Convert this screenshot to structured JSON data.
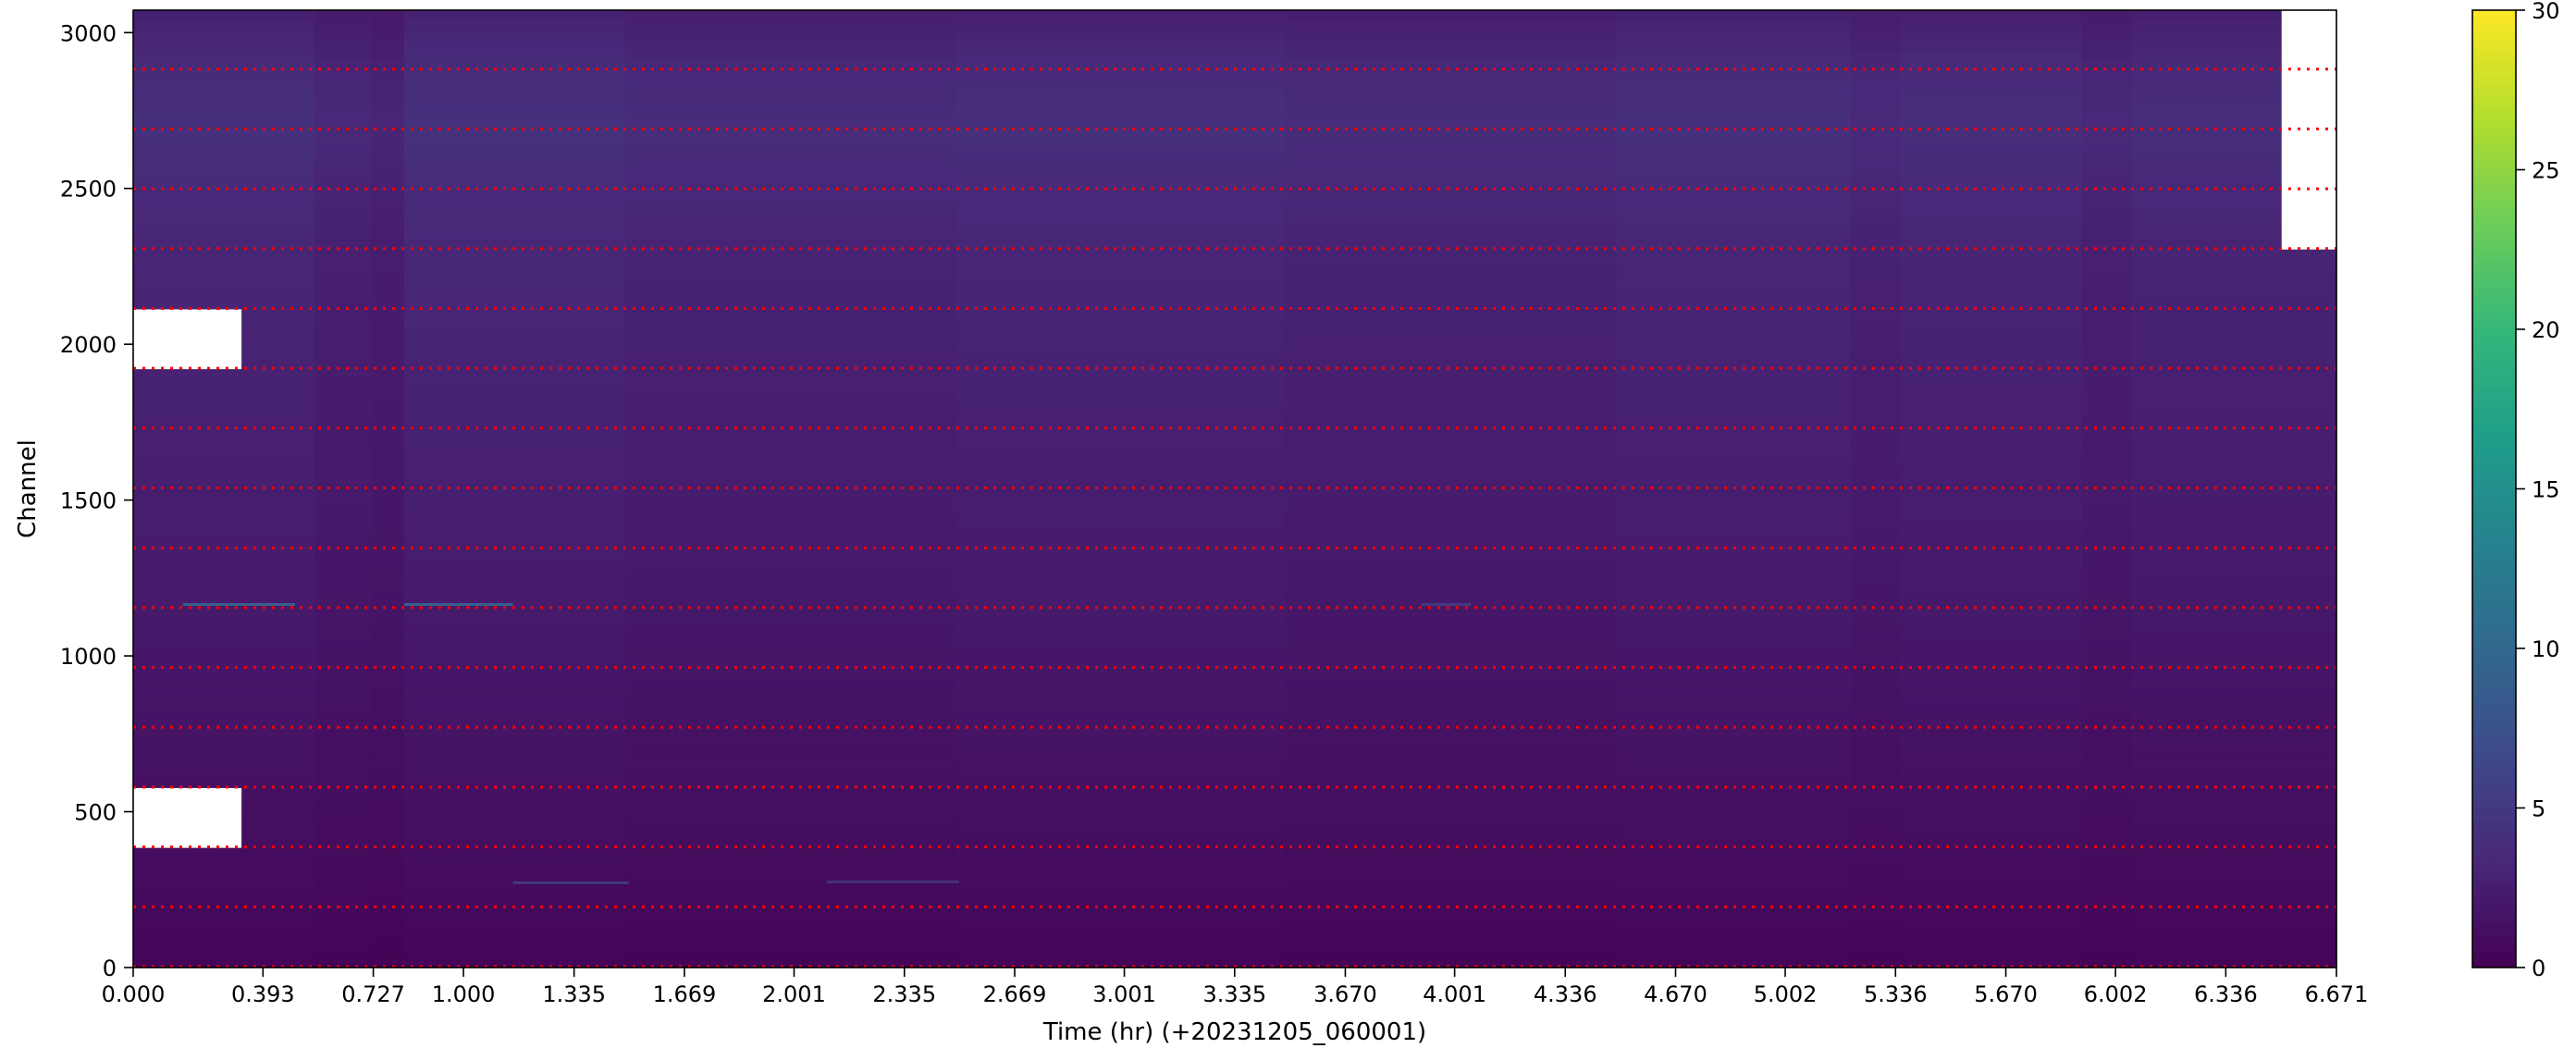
{
  "chart_data": {
    "type": "heatmap",
    "title": "",
    "xlabel": "Time (hr) (+20231205_060001)",
    "ylabel": "Channel",
    "xlim": [
      0,
      6.671
    ],
    "ylim": [
      0,
      3072
    ],
    "x_ticks": [
      "0.000",
      "0.393",
      "0.727",
      "1.000",
      "1.335",
      "1.669",
      "2.001",
      "2.335",
      "2.669",
      "3.001",
      "3.335",
      "3.670",
      "4.001",
      "4.336",
      "4.670",
      "5.002",
      "5.336",
      "5.670",
      "6.002",
      "6.336",
      "6.671"
    ],
    "x_tick_values": [
      0.0,
      0.393,
      0.727,
      1.0,
      1.335,
      1.669,
      2.001,
      2.335,
      2.669,
      3.001,
      3.335,
      3.67,
      4.001,
      4.336,
      4.67,
      5.002,
      5.336,
      5.67,
      6.002,
      6.336,
      6.671
    ],
    "y_ticks": [
      "0",
      "500",
      "1000",
      "1500",
      "2000",
      "2500",
      "3000"
    ],
    "y_tick_values": [
      0,
      500,
      1000,
      1500,
      2000,
      2500,
      3000
    ],
    "colorbar": {
      "colormap": "viridis",
      "range": [
        0,
        30
      ],
      "ticks": [
        "0",
        "5",
        "10",
        "15",
        "20",
        "25",
        "30"
      ],
      "tick_values": [
        0,
        5,
        10,
        15,
        20,
        25,
        30
      ]
    },
    "separator_channels": [
      0,
      192,
      384,
      576,
      768,
      960,
      1152,
      1344,
      1536,
      1728,
      1920,
      2112,
      2304,
      2496,
      2688,
      2880
    ],
    "separator_color": "#ff0000",
    "value_profile": [
      {
        "channel": 0,
        "value": 0.3
      },
      {
        "channel": 384,
        "value": 1.0
      },
      {
        "channel": 768,
        "value": 1.5
      },
      {
        "channel": 1152,
        "value": 2.0
      },
      {
        "channel": 1536,
        "value": 2.4
      },
      {
        "channel": 1920,
        "value": 2.7
      },
      {
        "channel": 2304,
        "value": 3.0
      },
      {
        "channel": 2496,
        "value": 3.4
      },
      {
        "channel": 2688,
        "value": 3.9
      },
      {
        "channel": 2880,
        "value": 3.5
      },
      {
        "channel": 3072,
        "value": 2.5
      }
    ],
    "time_brightness": [
      {
        "x0": 0.0,
        "x1": 0.55,
        "factor": 1.05
      },
      {
        "x0": 0.55,
        "x1": 0.72,
        "factor": 0.88
      },
      {
        "x0": 0.72,
        "x1": 0.82,
        "factor": 0.8
      },
      {
        "x0": 0.82,
        "x1": 1.49,
        "factor": 1.08
      },
      {
        "x0": 1.49,
        "x1": 2.49,
        "factor": 0.98
      },
      {
        "x0": 2.49,
        "x1": 3.49,
        "factor": 1.04
      },
      {
        "x0": 3.49,
        "x1": 4.49,
        "factor": 0.97
      },
      {
        "x0": 4.49,
        "x1": 5.2,
        "factor": 1.05
      },
      {
        "x0": 5.2,
        "x1": 5.35,
        "factor": 0.92
      },
      {
        "x0": 5.35,
        "x1": 5.9,
        "factor": 1.02
      },
      {
        "x0": 5.9,
        "x1": 6.05,
        "factor": 0.88
      },
      {
        "x0": 6.05,
        "x1": 6.671,
        "factor": 1.0
      }
    ],
    "missing_blocks": [
      {
        "x0": 0.0,
        "x1": 0.328,
        "y0": 384,
        "y1": 576
      },
      {
        "x0": 0.0,
        "x1": 0.328,
        "y0": 1920,
        "y1": 2112
      },
      {
        "x0": 6.505,
        "x1": 6.671,
        "y0": 2304,
        "y1": 3072
      }
    ],
    "streaks": [
      {
        "x0": 0.15,
        "x1": 0.49,
        "channel": 1165,
        "value": 9
      },
      {
        "x0": 0.82,
        "x1": 1.15,
        "channel": 1165,
        "value": 9
      },
      {
        "x0": 3.9,
        "x1": 4.05,
        "channel": 1165,
        "value": 5
      },
      {
        "x0": 1.15,
        "x1": 1.5,
        "channel": 272,
        "value": 5
      },
      {
        "x0": 2.1,
        "x1": 2.5,
        "channel": 275,
        "value": 4
      }
    ]
  }
}
